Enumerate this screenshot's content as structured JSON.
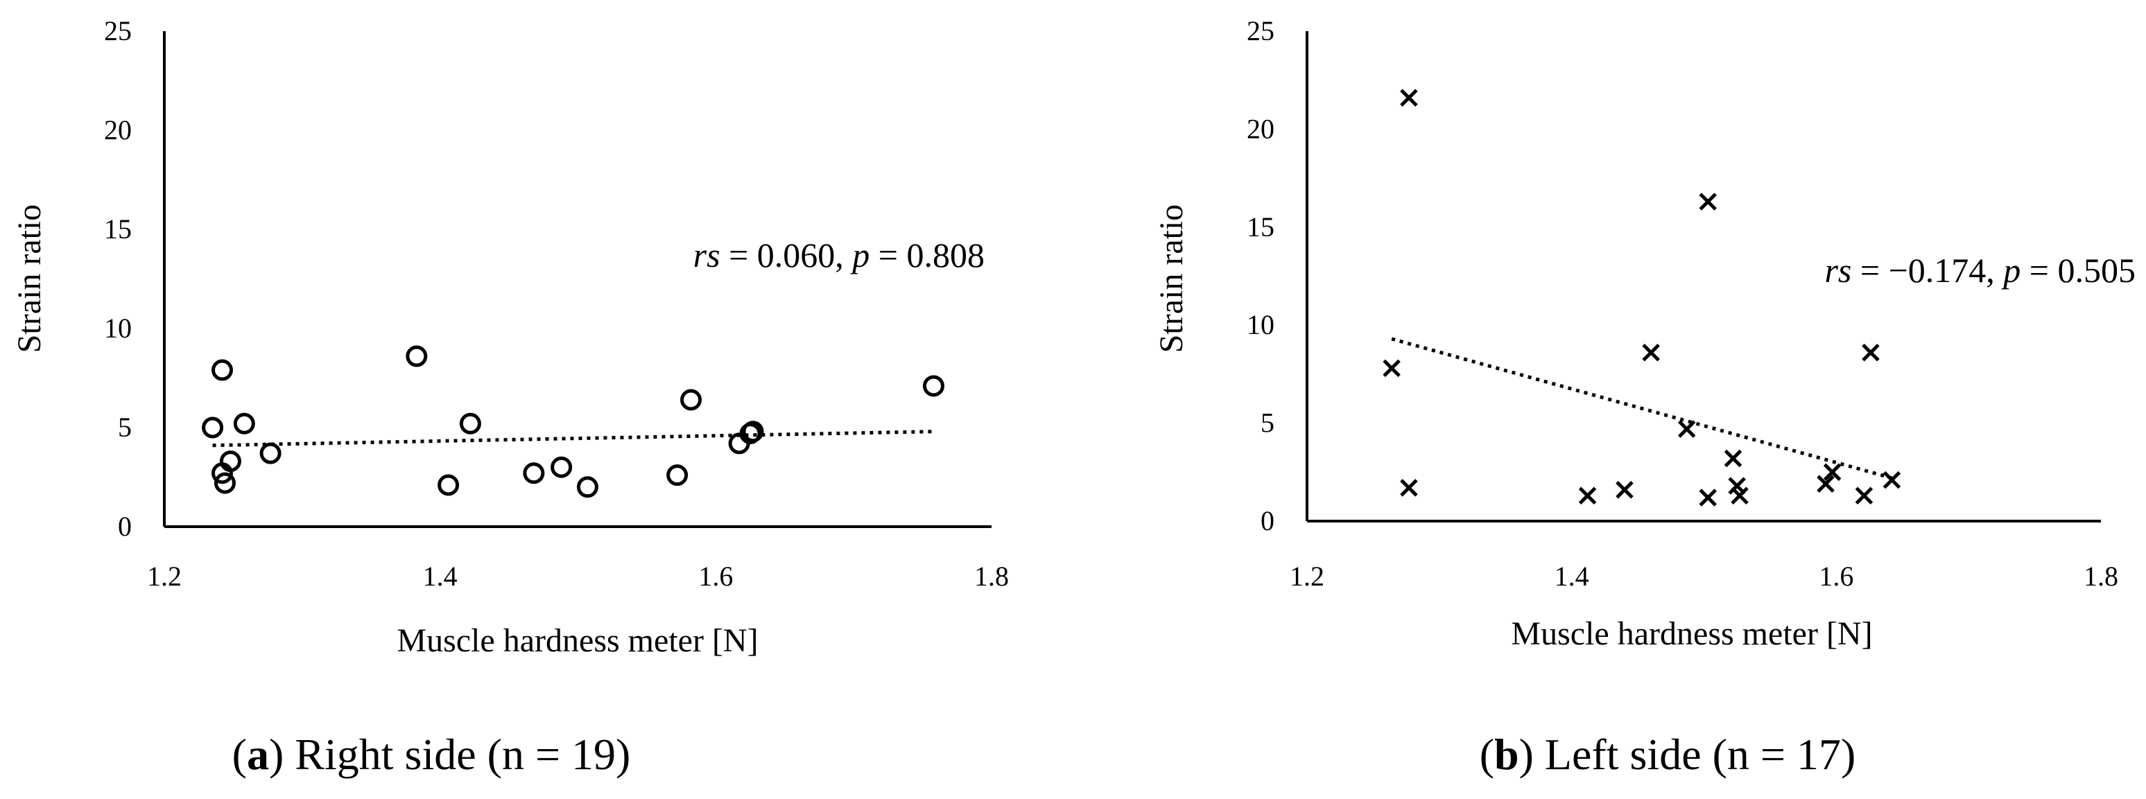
{
  "chart_data": [
    {
      "type": "scatter",
      "panel": "a",
      "caption_letter": "a",
      "caption_text": ") Right side (n = 19)",
      "caption_open": "(",
      "xlabel": "Muscle hardness meter [N]",
      "ylabel": "Strain ratio",
      "xlim": [
        1.2,
        1.8
      ],
      "ylim": [
        0,
        25
      ],
      "xticks": [
        "1.2",
        "1.4",
        "1.6",
        "1.8"
      ],
      "yticks": [
        "0",
        "5",
        "10",
        "15",
        "20",
        "25"
      ],
      "marker": "circle",
      "trendline": {
        "style": "dotted",
        "x": [
          1.235,
          1.758
        ],
        "y": [
          4.1,
          4.8
        ]
      },
      "annotation": {
        "rs_label": "rs",
        "rs_value": " = 0.060, ",
        "p_label": "p",
        "p_value": " = 0.808"
      },
      "x": [
        1.235,
        1.242,
        1.242,
        1.244,
        1.248,
        1.258,
        1.277,
        1.383,
        1.406,
        1.422,
        1.468,
        1.488,
        1.507,
        1.572,
        1.582,
        1.617,
        1.625,
        1.627,
        1.758
      ],
      "y": [
        5.0,
        7.9,
        2.7,
        2.2,
        3.3,
        5.2,
        3.7,
        8.6,
        2.1,
        5.2,
        2.7,
        3.0,
        2.0,
        2.6,
        6.4,
        4.2,
        4.7,
        4.8,
        7.1
      ]
    },
    {
      "type": "scatter",
      "panel": "b",
      "caption_letter": "b",
      "caption_text": ") Left side (n = 17)",
      "caption_open": "(",
      "xlabel": "Muscle hardness meter [N]",
      "ylabel": "Strain ratio",
      "xlim": [
        1.2,
        1.8
      ],
      "ylim": [
        0,
        25
      ],
      "xticks": [
        "1.2",
        "1.4",
        "1.6",
        "1.8"
      ],
      "yticks": [
        "0",
        "5",
        "10",
        "15",
        "20",
        "25"
      ],
      "marker": "x",
      "trendline": {
        "style": "dotted",
        "x": [
          1.264,
          1.642
        ],
        "y": [
          9.3,
          2.2
        ]
      },
      "annotation": {
        "rs_label": "rs",
        "rs_value": " = −0.174, ",
        "p_label": "p",
        "p_value": " = 0.505"
      },
      "x": [
        1.264,
        1.277,
        1.277,
        1.412,
        1.44,
        1.46,
        1.487,
        1.503,
        1.503,
        1.522,
        1.525,
        1.527,
        1.592,
        1.597,
        1.621,
        1.626,
        1.642
      ],
      "y": [
        7.8,
        21.6,
        1.7,
        1.3,
        1.6,
        8.6,
        4.7,
        16.3,
        1.2,
        3.2,
        1.8,
        1.3,
        1.9,
        2.5,
        1.3,
        8.6,
        2.1
      ]
    }
  ]
}
